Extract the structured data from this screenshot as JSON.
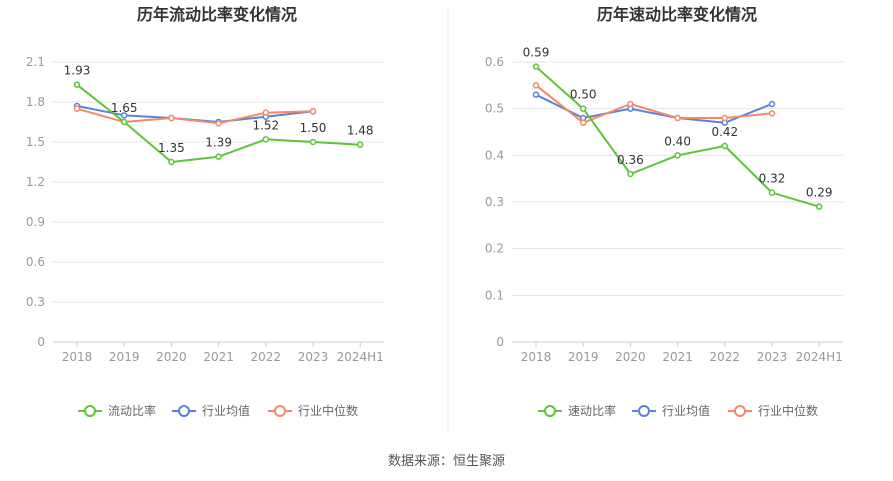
{
  "colors": {
    "grid": "#e6e6e6",
    "axis": "#cccccc",
    "tick_text": "#999999",
    "title_text": "#333333",
    "label_text": "#333333",
    "legend_text": "#666666",
    "divider": "#e8e8e8"
  },
  "source": "数据来源：恒生聚源",
  "chart_data": [
    {
      "type": "line",
      "title": "历年流动比率变化情况",
      "categories": [
        "2018",
        "2019",
        "2020",
        "2021",
        "2022",
        "2023",
        "2024H1"
      ],
      "ylim": [
        0,
        2.1
      ],
      "yticks": [
        "0",
        "0.3",
        "0.6",
        "0.9",
        "1.2",
        "1.5",
        "1.8",
        "2.1"
      ],
      "grid": true,
      "legend": "bottom",
      "series": [
        {
          "name": "流动比率",
          "color": "#5fc43a",
          "values": [
            1.93,
            1.65,
            1.35,
            1.39,
            1.52,
            1.5,
            1.48
          ],
          "labels": [
            "1.93",
            "1.65",
            "1.35",
            "1.39",
            "1.52",
            "1.50",
            "1.48"
          ]
        },
        {
          "name": "行业均值",
          "color": "#5b80e0",
          "values": [
            1.77,
            1.7,
            1.68,
            1.65,
            1.69,
            1.73,
            null
          ]
        },
        {
          "name": "行业中位数",
          "color": "#f28a68",
          "values": [
            1.75,
            1.65,
            1.68,
            1.64,
            1.72,
            1.73,
            null
          ]
        }
      ]
    },
    {
      "type": "line",
      "title": "历年速动比率变化情况",
      "categories": [
        "2018",
        "2019",
        "2020",
        "2021",
        "2022",
        "2023",
        "2024H1"
      ],
      "ylim": [
        0,
        0.6
      ],
      "yticks": [
        "0",
        "0.1",
        "0.2",
        "0.3",
        "0.4",
        "0.5",
        "0.6"
      ],
      "grid": true,
      "legend": "bottom",
      "series": [
        {
          "name": "速动比率",
          "color": "#5fc43a",
          "values": [
            0.59,
            0.5,
            0.36,
            0.4,
            0.42,
            0.32,
            0.29
          ],
          "labels": [
            "0.59",
            "0.50",
            "0.36",
            "0.40",
            "0.42",
            "0.32",
            "0.29"
          ]
        },
        {
          "name": "行业均值",
          "color": "#5b80e0",
          "values": [
            0.53,
            0.48,
            0.5,
            0.48,
            0.47,
            0.51,
            null
          ]
        },
        {
          "name": "行业中位数",
          "color": "#f28a68",
          "values": [
            0.55,
            0.47,
            0.51,
            0.48,
            0.48,
            0.49,
            null
          ]
        }
      ]
    }
  ]
}
